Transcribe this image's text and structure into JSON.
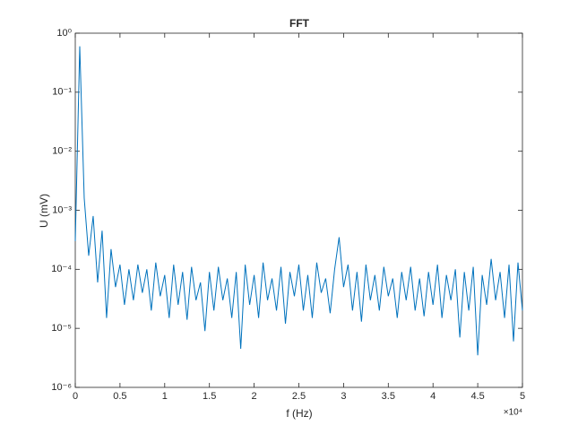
{
  "chart_data": {
    "type": "line",
    "title": "FFT",
    "x_label": "f (Hz)",
    "y_label": "U (mV)",
    "x_exponent_label": "×10⁴",
    "color": "#0072bd",
    "y_log": true,
    "xlim": [
      0,
      50000
    ],
    "ylim": [
      1e-06,
      1
    ],
    "xticks": [
      0,
      {
        "value": 5000,
        "label": "0.5"
      },
      {
        "value": 10000,
        "label": "1"
      },
      {
        "value": 15000,
        "label": "1.5"
      },
      {
        "value": 20000,
        "label": "2"
      },
      {
        "value": 25000,
        "label": "2.5"
      },
      {
        "value": 30000,
        "label": "3"
      },
      {
        "value": 35000,
        "label": "3.5"
      },
      {
        "value": 40000,
        "label": "4"
      },
      {
        "value": 45000,
        "label": "4.5"
      },
      {
        "value": 50000,
        "label": "5"
      }
    ],
    "yticks": [
      {
        "value": 1e-06,
        "label": "10⁻⁶"
      },
      {
        "value": 1e-05,
        "label": "10⁻⁵"
      },
      {
        "value": 0.0001,
        "label": "10⁻⁴"
      },
      {
        "value": 0.001,
        "label": "10⁻³"
      },
      {
        "value": 0.01,
        "label": "10⁻²"
      },
      {
        "value": 0.1,
        "label": "10⁻¹"
      },
      {
        "value": 1,
        "label": "10⁰"
      }
    ],
    "x": [
      0,
      500,
      1000,
      1500,
      2000,
      2500,
      3000,
      3500,
      4000,
      4500,
      5000,
      5500,
      6000,
      6500,
      7000,
      7500,
      8000,
      8500,
      9000,
      9500,
      10000,
      10500,
      11000,
      11500,
      12000,
      12500,
      13000,
      13500,
      14000,
      14500,
      15000,
      15500,
      16000,
      16500,
      17000,
      17500,
      18000,
      18500,
      19000,
      19500,
      20000,
      20500,
      21000,
      21500,
      22000,
      22500,
      23000,
      23500,
      24000,
      24500,
      25000,
      25500,
      26000,
      26500,
      27000,
      27500,
      28000,
      28500,
      29000,
      29500,
      30000,
      30500,
      31000,
      31500,
      32000,
      32500,
      33000,
      33500,
      34000,
      34500,
      35000,
      35500,
      36000,
      36500,
      37000,
      37500,
      38000,
      38500,
      39000,
      39500,
      40000,
      40500,
      41000,
      41500,
      42000,
      42500,
      43000,
      43500,
      44000,
      44500,
      45000,
      45500,
      46000,
      46500,
      47000,
      47500,
      48000,
      48500,
      49000,
      49500,
      50000
    ],
    "values": [
      0.0003,
      0.6,
      0.0016,
      0.00017,
      0.0008,
      6e-05,
      0.00045,
      1.5e-05,
      0.00022,
      5e-05,
      0.00012,
      2.5e-05,
      0.0001,
      3e-05,
      0.00012,
      4e-05,
      0.0001,
      2e-05,
      0.00013,
      3.5e-05,
      8e-05,
      1.5e-05,
      0.00012,
      2.5e-05,
      9e-05,
      1.4e-05,
      0.00011,
      3e-05,
      6e-05,
      9e-06,
      9e-05,
      2e-05,
      0.00011,
      3e-05,
      7e-05,
      1.5e-05,
      9e-05,
      4.5e-06,
      0.00012,
      2.5e-05,
      8e-05,
      1.5e-05,
      0.00013,
      3e-05,
      7e-05,
      2e-05,
      0.00011,
      1.2e-05,
      9e-05,
      3.5e-05,
      0.00012,
      2e-05,
      8e-05,
      1.5e-05,
      0.00013,
      4e-05,
      7e-05,
      1.8e-05,
      0.0001,
      0.00035,
      5e-05,
      0.00012,
      2e-05,
      9e-05,
      1.3e-05,
      0.00012,
      3e-05,
      8e-05,
      2e-05,
      0.00011,
      3.5e-05,
      7e-05,
      1.5e-05,
      9e-05,
      3e-05,
      0.00011,
      2e-05,
      7e-05,
      1.6e-05,
      9e-05,
      2.5e-05,
      0.00012,
      1.5e-05,
      8e-05,
      3e-05,
      0.0001,
      7e-06,
      9e-05,
      2e-05,
      0.00011,
      3.5e-06,
      8e-05,
      2.5e-05,
      0.00015,
      3e-05,
      9e-05,
      1.5e-05,
      0.00012,
      6e-06,
      0.00013,
      2e-05
    ]
  }
}
